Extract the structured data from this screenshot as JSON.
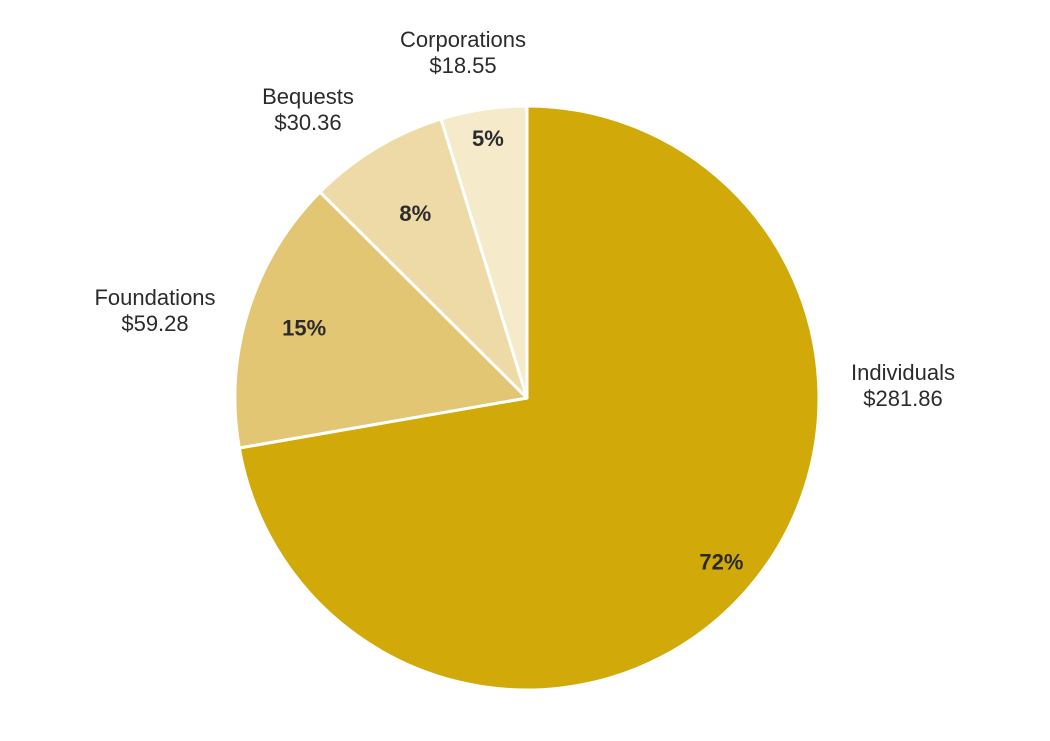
{
  "chart_data": {
    "type": "pie",
    "title": "",
    "start_angle_deg": 0,
    "direction": "clockwise",
    "slices": [
      {
        "label": "Individuals",
        "value_label": "$281.86",
        "value": 281.86,
        "percent_label": "72%",
        "color": "#D1A908"
      },
      {
        "label": "Foundations",
        "value_label": "$59.28",
        "value": 59.28,
        "percent_label": "15%",
        "color": "#E2C674"
      },
      {
        "label": "Bequests",
        "value_label": "$30.36",
        "value": 30.36,
        "percent_label": "8%",
        "color": "#EDDAA6"
      },
      {
        "label": "Corporations",
        "value_label": "$18.55",
        "value": 18.55,
        "percent_label": "5%",
        "color": "#F5EBCB"
      }
    ]
  }
}
